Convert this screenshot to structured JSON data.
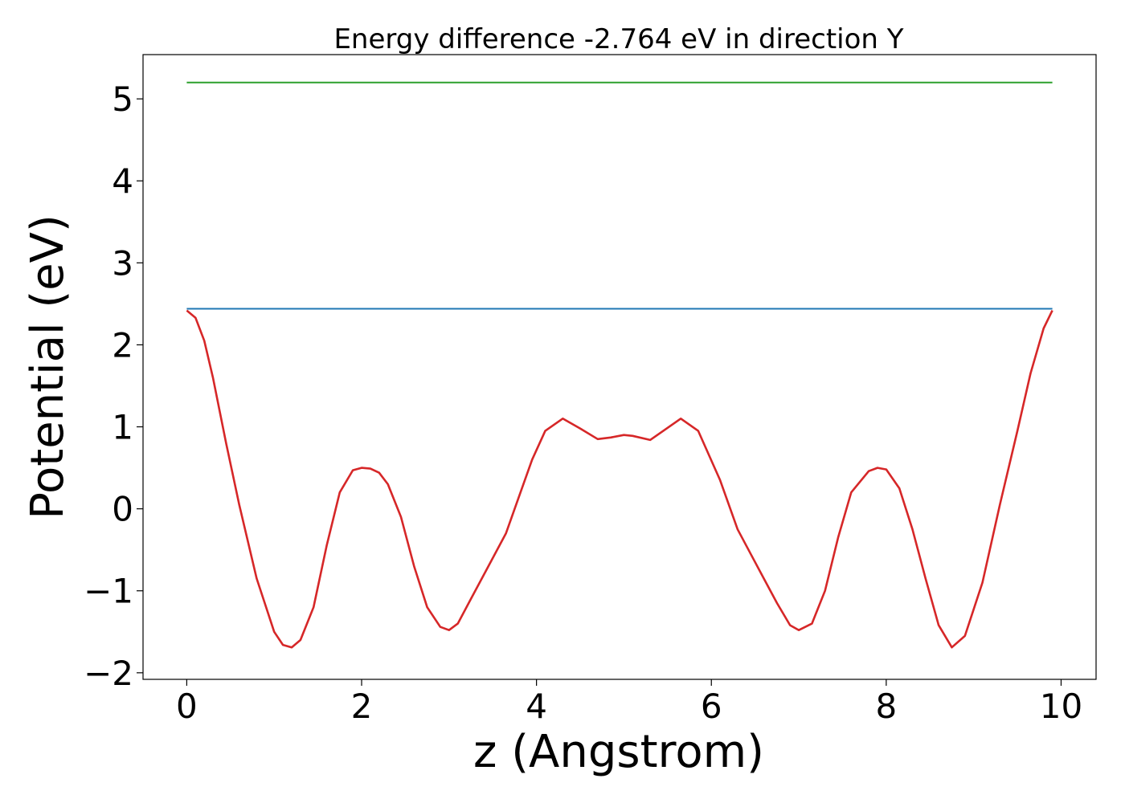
{
  "chart_data": {
    "type": "line",
    "title": "Energy difference -2.764 eV in direction Y",
    "xlabel": "z (Angstrom)",
    "ylabel": "Potential (eV)",
    "xlim": [
      -0.5,
      10.4
    ],
    "ylim": [
      -2.08,
      5.54
    ],
    "xticks": [
      0,
      2,
      4,
      6,
      8,
      10
    ],
    "yticks": [
      -2,
      -1,
      0,
      1,
      2,
      3,
      4,
      5
    ],
    "grid": false,
    "legend": "none",
    "series": [
      {
        "color": "#2ca02c",
        "x": [
          0,
          9.9
        ],
        "y": [
          5.2,
          5.2
        ]
      },
      {
        "color": "#1f77b4",
        "x": [
          0,
          9.9
        ],
        "y": [
          2.44,
          2.44
        ]
      },
      {
        "color": "#d62728",
        "x": [
          0.0,
          0.1,
          0.2,
          0.3,
          0.45,
          0.6,
          0.8,
          1.0,
          1.1,
          1.2,
          1.3,
          1.45,
          1.6,
          1.75,
          1.9,
          2.0,
          2.1,
          2.2,
          2.3,
          2.45,
          2.6,
          2.75,
          2.9,
          3.0,
          3.1,
          3.25,
          3.45,
          3.65,
          3.8,
          3.95,
          4.1,
          4.3,
          4.5,
          4.7,
          4.85,
          5.0,
          5.1,
          5.3,
          5.45,
          5.65,
          5.85,
          6.1,
          6.3,
          6.45,
          6.6,
          6.75,
          6.9,
          7.0,
          7.15,
          7.3,
          7.45,
          7.6,
          7.8,
          7.9,
          8.0,
          8.15,
          8.3,
          8.45,
          8.6,
          8.75,
          8.9,
          9.1,
          9.3,
          9.5,
          9.65,
          9.8,
          9.9
        ],
        "y": [
          2.42,
          2.33,
          2.05,
          1.6,
          0.8,
          0.05,
          -0.85,
          -1.5,
          -1.66,
          -1.69,
          -1.6,
          -1.2,
          -0.45,
          0.2,
          0.47,
          0.5,
          0.49,
          0.44,
          0.3,
          -0.1,
          -0.7,
          -1.2,
          -1.44,
          -1.48,
          -1.4,
          -1.1,
          -0.7,
          -0.3,
          0.15,
          0.6,
          0.95,
          1.1,
          0.98,
          0.85,
          0.87,
          0.9,
          0.89,
          0.84,
          0.95,
          1.1,
          0.95,
          0.35,
          -0.25,
          -0.55,
          -0.85,
          -1.15,
          -1.42,
          -1.48,
          -1.4,
          -1.0,
          -0.35,
          0.2,
          0.46,
          0.5,
          0.48,
          0.25,
          -0.25,
          -0.85,
          -1.42,
          -1.69,
          -1.55,
          -0.9,
          0.05,
          0.95,
          1.65,
          2.2,
          2.42
        ]
      }
    ]
  }
}
